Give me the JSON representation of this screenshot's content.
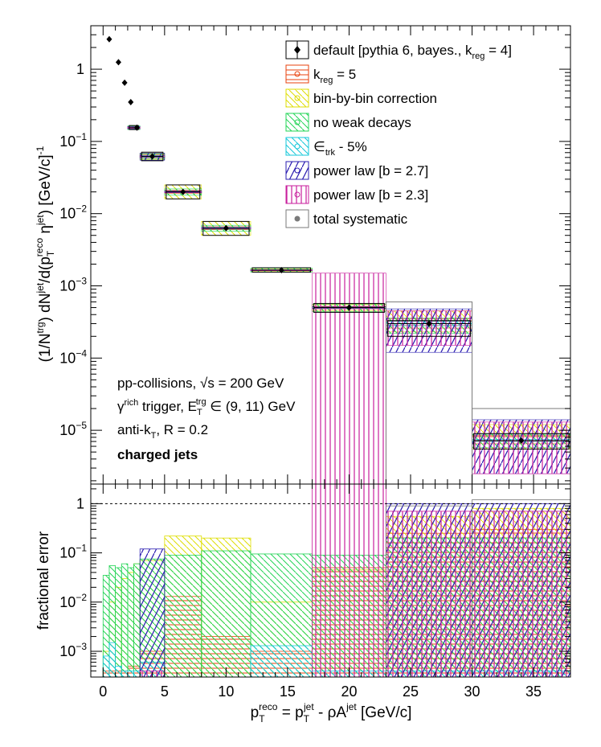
{
  "chart_data": [
    {
      "panel": "top",
      "type": "scatter",
      "yscale": "log",
      "xlim": [
        -1,
        38
      ],
      "ylim": [
        1.8e-06,
        4
      ],
      "ylabel": {
        "main": "(1/N",
        "sup1": "trg",
        "mid1": ") dN",
        "sup2": "jet",
        "mid2": "/d(p",
        "sub3": "T",
        "sup3": "reco",
        "mid3": " η",
        "sup4": "jet",
        "end": ") [GeV/c]",
        "sup5": "-1"
      },
      "yticks": [
        {
          "v": 1,
          "label": "1"
        },
        {
          "v": 0.1,
          "label": "10",
          "exp": "−1"
        },
        {
          "v": 0.01,
          "label": "10",
          "exp": "−2"
        },
        {
          "v": 0.001,
          "label": "10",
          "exp": "−3"
        },
        {
          "v": 0.0001,
          "label": "10",
          "exp": "−4"
        },
        {
          "v": 1e-05,
          "label": "10",
          "exp": "−5"
        }
      ],
      "points": [
        {
          "x": 0.5,
          "y": 2.6,
          "xlo": 0,
          "xhi": 1,
          "syst_lo": 2.5,
          "syst_hi": 2.7,
          "box": false
        },
        {
          "x": 1.25,
          "y": 1.25,
          "xlo": 1,
          "xhi": 1.5,
          "syst_lo": 1.2,
          "syst_hi": 1.3,
          "box": false
        },
        {
          "x": 1.75,
          "y": 0.65,
          "xlo": 1.5,
          "xhi": 2,
          "syst_lo": 0.62,
          "syst_hi": 0.68,
          "box": false
        },
        {
          "x": 2.25,
          "y": 0.35,
          "xlo": 2,
          "xhi": 2.5,
          "syst_lo": 0.33,
          "syst_hi": 0.37,
          "box": false
        },
        {
          "x": 2.75,
          "y": 0.155,
          "xlo": 2,
          "xhi": 3,
          "syst_lo": 0.146,
          "syst_hi": 0.166,
          "box": true
        },
        {
          "x": 4,
          "y": 0.062,
          "xlo": 3,
          "xhi": 5,
          "syst_lo": 0.054,
          "syst_hi": 0.071,
          "box": true
        },
        {
          "x": 6.5,
          "y": 0.02,
          "xlo": 5,
          "xhi": 8,
          "syst_lo": 0.016,
          "syst_hi": 0.025,
          "box": true
        },
        {
          "x": 10,
          "y": 0.0063,
          "xlo": 8,
          "xhi": 12,
          "syst_lo": 0.005,
          "syst_hi": 0.0078,
          "box": true
        },
        {
          "x": 14.5,
          "y": 0.00165,
          "xlo": 12,
          "xhi": 17,
          "syst_lo": 0.00155,
          "syst_hi": 0.00178,
          "box": true
        },
        {
          "x": 20,
          "y": 0.0005,
          "xlo": 17,
          "xhi": 23,
          "syst_lo": 0.00043,
          "syst_hi": 0.00057,
          "box": true
        },
        {
          "x": 26.5,
          "y": 0.0003,
          "xlo": 23,
          "xhi": 30,
          "syst_lo": 0.0002,
          "syst_hi": 0.00033,
          "box": true
        },
        {
          "x": 34,
          "y": 7.2e-06,
          "xlo": 30,
          "xhi": 38,
          "syst_lo": 5.5e-06,
          "syst_hi": 9e-06,
          "box": true
        }
      ],
      "systematic_bands": [
        {
          "variation": "kreg5",
          "x": [
            [
              2,
              3
            ],
            [
              3,
              5
            ],
            [
              5,
              8
            ],
            [
              8,
              12
            ],
            [
              12,
              17
            ],
            [
              17,
              23
            ],
            [
              23,
              30
            ],
            [
              30,
              38
            ]
          ],
          "ylo": [
            0.15,
            0.059,
            0.019,
            0.006,
            0.00162,
            0.00048,
            0.00026,
            6.5e-06
          ],
          "yhi": [
            0.16,
            0.065,
            0.021,
            0.0066,
            0.00168,
            0.00052,
            0.00035,
            8.5e-06
          ]
        },
        {
          "variation": "binbybin",
          "x": [
            [
              2,
              3
            ],
            [
              3,
              5
            ],
            [
              5,
              8
            ],
            [
              8,
              12
            ],
            [
              12,
              17
            ],
            [
              17,
              23
            ],
            [
              23,
              30
            ],
            [
              30,
              38
            ]
          ],
          "ylo": [
            0.148,
            0.056,
            0.016,
            0.005,
            0.0016,
            0.00045,
            0.00023,
            5.5e-06
          ],
          "yhi": [
            0.162,
            0.068,
            0.025,
            0.0078,
            0.0017,
            0.00055,
            0.00045,
            1.2e-05
          ]
        },
        {
          "variation": "noweak",
          "x": [
            [
              2,
              3
            ],
            [
              3,
              5
            ],
            [
              5,
              8
            ],
            [
              8,
              12
            ],
            [
              12,
              17
            ],
            [
              17,
              23
            ],
            [
              23,
              30
            ],
            [
              30,
              38
            ]
          ],
          "ylo": [
            0.146,
            0.057,
            0.018,
            0.0057,
            0.00155,
            0.00044,
            0.00022,
            5.8e-06
          ],
          "yhi": [
            0.164,
            0.067,
            0.022,
            0.0069,
            0.00176,
            0.00056,
            0.00036,
            8.8e-06
          ]
        },
        {
          "variation": "trk",
          "x": [
            [
              2,
              3
            ],
            [
              3,
              5
            ],
            [
              5,
              8
            ],
            [
              8,
              12
            ],
            [
              12,
              17
            ],
            [
              17,
              23
            ],
            [
              23,
              30
            ],
            [
              30,
              38
            ]
          ],
          "ylo": [
            0.15,
            0.06,
            0.0195,
            0.0061,
            0.00163,
            0.00049,
            0.00028,
            7e-06
          ],
          "yhi": [
            0.16,
            0.064,
            0.0205,
            0.0065,
            0.00167,
            0.00051,
            0.00032,
            7.5e-06
          ]
        },
        {
          "variation": "pl27",
          "x": [
            [
              2,
              3
            ],
            [
              3,
              5
            ],
            [
              5,
              8
            ],
            [
              8,
              12
            ],
            [
              12,
              17
            ],
            [
              17,
              23
            ],
            [
              23,
              30
            ],
            [
              30,
              38
            ]
          ],
          "ylo": [
            0.15,
            0.055,
            0.0195,
            0.0062,
            0.00163,
            0.00049,
            0.00012,
            2.5e-06
          ],
          "yhi": [
            0.16,
            0.069,
            0.0205,
            0.0064,
            0.00167,
            0.00051,
            0.00048,
            1.4e-05
          ]
        },
        {
          "variation": "pl23",
          "x": [
            [
              2,
              3
            ],
            [
              3,
              5
            ],
            [
              5,
              8
            ],
            [
              8,
              12
            ],
            [
              12,
              17
            ],
            [
              17,
              23
            ],
            [
              23,
              30
            ],
            [
              30,
              38
            ]
          ],
          "ylo": [
            0.152,
            0.061,
            0.0198,
            0.0062,
            0.00164,
            1.8e-06,
            0.00015,
            2.5e-06
          ],
          "yhi": [
            0.158,
            0.063,
            0.0202,
            0.0064,
            0.00166,
            0.0015,
            0.00045,
            1.3e-05
          ]
        },
        {
          "variation": "total",
          "x": [
            [
              30,
              38
            ]
          ],
          "ylo": [
            1.8e-06
          ],
          "yhi": [
            2e-05
          ]
        },
        {
          "variation": "total",
          "x": [
            [
              23,
              30
            ]
          ],
          "ylo": [
            1.8e-06
          ],
          "yhi": [
            0.0006
          ]
        }
      ]
    },
    {
      "panel": "bottom",
      "type": "bar",
      "yscale": "log",
      "xlim": [
        -1,
        38
      ],
      "ylim": [
        0.0003,
        2.5
      ],
      "xlabel": {
        "p": "p",
        "sub1": "T",
        "sup1": "reco",
        "eq": " = p",
        "sub2": "T",
        "sup2": "jet",
        "mid": " - ρA",
        "sup3": "jet",
        "end": " [GeV/c]"
      },
      "ylabel": "fractional error",
      "reference_line": 1,
      "yticks": [
        {
          "v": 1,
          "label": "1"
        },
        {
          "v": 0.1,
          "label": "10",
          "exp": "−1"
        },
        {
          "v": 0.01,
          "label": "10",
          "exp": "−2"
        },
        {
          "v": 0.001,
          "label": "10",
          "exp": "−3"
        }
      ],
      "xticks": [
        0,
        5,
        10,
        15,
        20,
        25,
        30,
        35
      ],
      "bins": [
        [
          0,
          0.5
        ],
        [
          0.5,
          1
        ],
        [
          1,
          1.5
        ],
        [
          1.5,
          2
        ],
        [
          2,
          2.5
        ],
        [
          2.5,
          3
        ],
        [
          3,
          5
        ],
        [
          5,
          8
        ],
        [
          8,
          12
        ],
        [
          12,
          17
        ],
        [
          17,
          23
        ],
        [
          23,
          30
        ],
        [
          30,
          38
        ]
      ],
      "series": [
        {
          "variation": "kreg5",
          "values": [
            0.0004,
            0.0004,
            0.0004,
            0.0004,
            0.0005,
            0.0005,
            0.001,
            0.013,
            0.002,
            0.001,
            0.05,
            0.25,
            0.3
          ]
        },
        {
          "variation": "binbybin",
          "values": [
            0.001,
            0.01,
            0.02,
            0.03,
            0.04,
            0.06,
            0.07,
            0.22,
            0.2,
            0.01,
            0.045,
            0.55,
            0.8
          ]
        },
        {
          "variation": "noweak",
          "values": [
            0.035,
            0.055,
            0.05,
            0.06,
            0.05,
            0.06,
            0.075,
            0.09,
            0.11,
            0.095,
            0.09,
            0.2,
            0.2
          ]
        },
        {
          "variation": "trk",
          "values": [
            0.0008,
            0.0015,
            0.0005,
            0.0004,
            0.0004,
            0.0004,
            0.0006,
            0.0003,
            0.0003,
            0.0013,
            0.0004,
            0.0004,
            0.0004
          ]
        },
        {
          "variation": "pl27",
          "values": [
            0.0003,
            0.0003,
            0.0003,
            0.0003,
            0.0003,
            0.0003,
            0.12,
            0.0003,
            0.0003,
            0.0003,
            0.0003,
            1.0,
            1.0
          ]
        },
        {
          "variation": "pl23",
          "values": [
            0.0003,
            0.0003,
            0.0003,
            0.0003,
            0.0003,
            0.0003,
            0.0004,
            0.0003,
            0.0003,
            0.0003,
            2.5,
            0.7,
            0.7
          ]
        },
        {
          "variation": "total",
          "values": [
            0.0003,
            0.0003,
            0.0003,
            0.0003,
            0.0003,
            0.0003,
            0.0003,
            0.0003,
            0.0003,
            0.0003,
            0.0003,
            0.9,
            1.2
          ]
        }
      ]
    }
  ],
  "legend": [
    {
      "id": "default",
      "color": "#000000",
      "style": "marker",
      "text": "default [pythia 6, bayes., k",
      "sub": "reg",
      "tail": " = 4]"
    },
    {
      "id": "kreg5",
      "color": "#e8400c",
      "style": "hline",
      "text": "k",
      "sub": "reg",
      "tail": " = 5"
    },
    {
      "id": "binbybin",
      "color": "#dede00",
      "style": "diag",
      "text": "bin-by-bin correction",
      "sub": "",
      "tail": ""
    },
    {
      "id": "noweak",
      "color": "#22d455",
      "style": "diag",
      "text": "no weak decays",
      "sub": "",
      "tail": ""
    },
    {
      "id": "trk",
      "color": "#12c7d8",
      "style": "diag",
      "text": "∈",
      "sub": "trk",
      "tail": " - 5%"
    },
    {
      "id": "pl27",
      "color": "#2a1cb0",
      "style": "steep",
      "text": "power law [b = 2.7]",
      "sub": "",
      "tail": ""
    },
    {
      "id": "pl23",
      "color": "#c81e9c",
      "style": "vline",
      "text": "power law [b = 2.3]",
      "sub": "",
      "tail": ""
    },
    {
      "id": "total",
      "color": "#7a7a7a",
      "style": "box",
      "text": "total systematic",
      "sub": "",
      "tail": ""
    }
  ],
  "annotations": {
    "line1_text": "pp-collisions, ",
    "line1_sqrt": "√s",
    "line1_tail": " = 200 GeV",
    "line2_gamma": "γ",
    "line2_sup": "rich",
    "line2_mid": " trigger, E",
    "line2_sub": "T",
    "line2_sup2": "trg",
    "line2_tail": " ∈ (9, 11) GeV",
    "line3_text": "anti-k",
    "line3_sub": "T",
    "line3_tail": ", R = 0.2",
    "line4": "charged jets"
  }
}
